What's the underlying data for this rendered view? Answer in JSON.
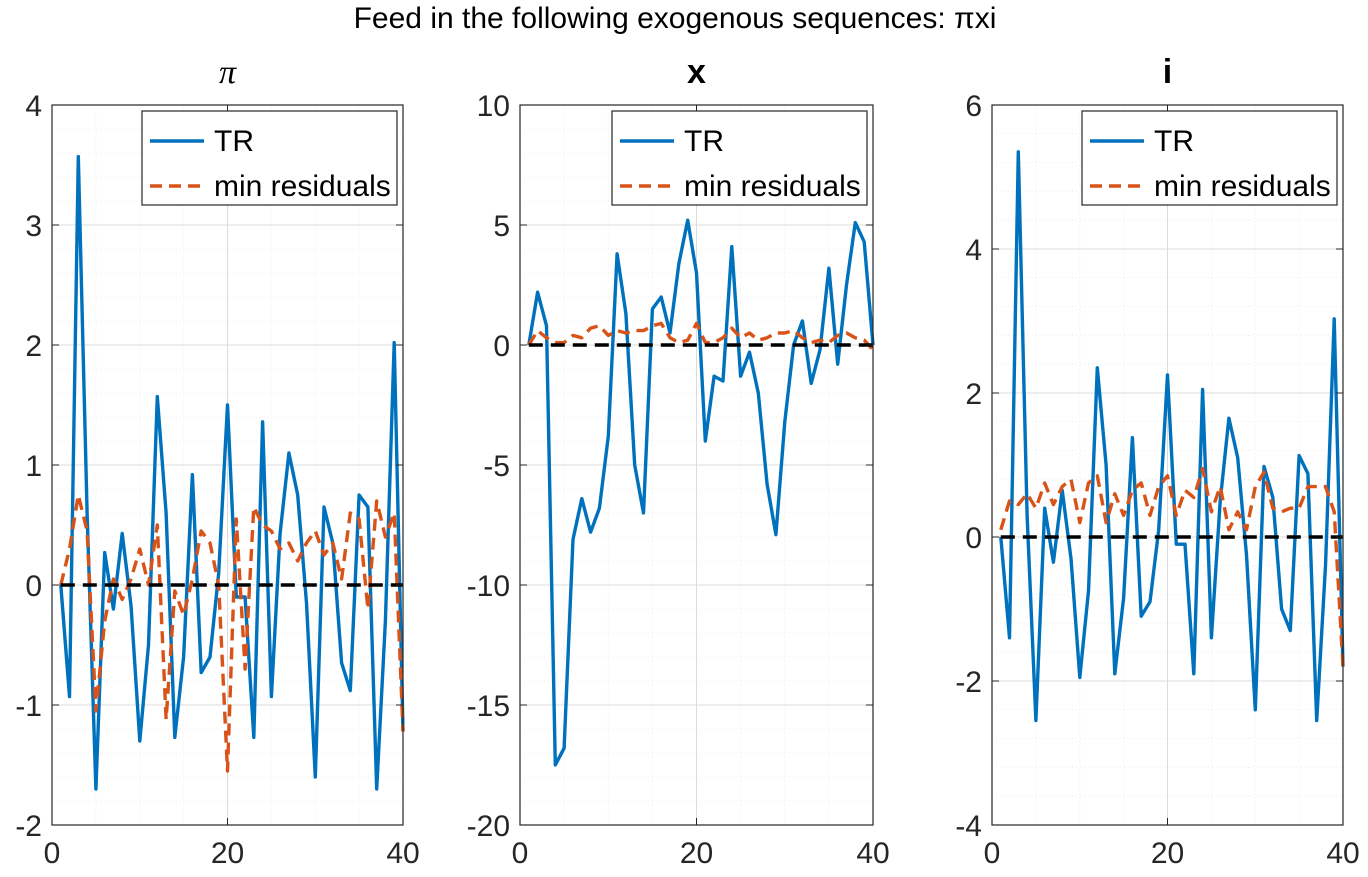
{
  "figure": {
    "suptitle": "Feed in the following exogenous sequences: πxi"
  },
  "colors": {
    "tr": "#0072BD",
    "min_residuals": "#D95319",
    "zero_line": "#000000",
    "grid_major": "#dcdcdc",
    "grid_minor": "#ececec"
  },
  "chart_data": [
    {
      "type": "line",
      "title": "π",
      "title_style": "italic",
      "xlim": [
        0,
        40
      ],
      "ylim": [
        -2,
        4
      ],
      "xticks": [
        0,
        20,
        40
      ],
      "yticks": [
        -2,
        -1,
        0,
        1,
        2,
        3,
        4
      ],
      "xticklabels": [
        "0",
        "20",
        "40"
      ],
      "yticklabels": [
        "-2",
        "-1",
        "0",
        "1",
        "2",
        "3",
        "4"
      ],
      "grid": true,
      "minor_grid": true,
      "legend": {
        "position": "top-right",
        "entries": [
          "TR",
          "min residuals"
        ]
      },
      "series": [
        {
          "name": "TR",
          "style": "solid",
          "x": [
            1,
            2,
            3,
            4,
            5,
            6,
            7,
            8,
            9,
            10,
            11,
            12,
            13,
            14,
            15,
            16,
            17,
            18,
            19,
            20,
            21,
            22,
            23,
            24,
            25,
            26,
            27,
            28,
            29,
            30,
            31,
            32,
            33,
            34,
            35,
            36,
            37,
            38,
            39,
            40
          ],
          "y": [
            0,
            -0.93,
            3.57,
            0.6,
            -1.7,
            0.27,
            -0.2,
            0.43,
            -0.17,
            -1.3,
            -0.5,
            1.57,
            0.6,
            -1.27,
            -0.6,
            0.92,
            -0.73,
            -0.6,
            0.1,
            1.5,
            -0.1,
            -0.1,
            -1.27,
            1.36,
            -0.93,
            0.43,
            1.1,
            0.75,
            -0.15,
            -1.6,
            0.65,
            0.35,
            -0.65,
            -0.88,
            0.75,
            0.65,
            -1.7,
            -0.3,
            2.02,
            -1.22
          ]
        },
        {
          "name": "min residuals",
          "style": "dashed",
          "x": [
            1,
            2,
            3,
            4,
            5,
            6,
            7,
            8,
            9,
            10,
            11,
            12,
            13,
            14,
            15,
            16,
            17,
            18,
            19,
            20,
            21,
            22,
            23,
            24,
            25,
            26,
            27,
            28,
            29,
            30,
            31,
            32,
            33,
            34,
            35,
            36,
            37,
            38,
            39,
            40
          ],
          "y": [
            0,
            0.3,
            0.75,
            0.45,
            -1.05,
            -0.3,
            0.05,
            -0.12,
            0.05,
            0.3,
            0.0,
            0.5,
            -1.12,
            -0.05,
            -0.25,
            0.05,
            0.45,
            0.35,
            0.0,
            -1.55,
            0.55,
            -0.7,
            0.65,
            0.5,
            0.45,
            0.3,
            0.35,
            0.2,
            0.35,
            0.45,
            0.25,
            0.35,
            0.05,
            0.6,
            0.55,
            -0.2,
            0.7,
            0.4,
            0.6,
            -1.22
          ]
        },
        {
          "name": "",
          "style": "dashed-black",
          "x": [
            1,
            40
          ],
          "y": [
            0,
            0
          ]
        }
      ]
    },
    {
      "type": "line",
      "title": "x",
      "title_style": "bold",
      "xlim": [
        0,
        40
      ],
      "ylim": [
        -20,
        10
      ],
      "xticks": [
        0,
        20,
        40
      ],
      "yticks": [
        -20,
        -15,
        -10,
        -5,
        0,
        5,
        10
      ],
      "xticklabels": [
        "0",
        "20",
        "40"
      ],
      "yticklabels": [
        "-20",
        "-15",
        "-10",
        "-5",
        "0",
        "5",
        "10"
      ],
      "grid": true,
      "minor_grid": true,
      "legend": {
        "position": "top-right",
        "entries": [
          "TR",
          "min residuals"
        ]
      },
      "series": [
        {
          "name": "TR",
          "style": "solid",
          "x": [
            1,
            2,
            3,
            4,
            5,
            6,
            7,
            8,
            9,
            10,
            11,
            12,
            13,
            14,
            15,
            16,
            17,
            18,
            19,
            20,
            21,
            22,
            23,
            24,
            25,
            26,
            27,
            28,
            29,
            30,
            31,
            32,
            33,
            34,
            35,
            36,
            37,
            38,
            39,
            40
          ],
          "y": [
            0,
            2.2,
            0.8,
            -17.5,
            -16.8,
            -8.1,
            -6.4,
            -7.8,
            -6.8,
            -3.8,
            3.8,
            1.3,
            -5.0,
            -7.0,
            1.5,
            2.0,
            0.5,
            3.4,
            5.2,
            3.0,
            -4.0,
            -1.3,
            -1.5,
            4.1,
            -1.3,
            -0.3,
            -2.0,
            -5.8,
            -7.9,
            -3.2,
            0.0,
            1.0,
            -1.6,
            -0.2,
            3.2,
            -0.8,
            2.5,
            5.1,
            4.3,
            0.0
          ]
        },
        {
          "name": "min residuals",
          "style": "dashed",
          "x": [
            1,
            2,
            3,
            4,
            5,
            6,
            7,
            8,
            9,
            10,
            11,
            12,
            13,
            14,
            15,
            16,
            17,
            18,
            19,
            20,
            21,
            22,
            23,
            24,
            25,
            26,
            27,
            28,
            29,
            30,
            31,
            32,
            33,
            34,
            35,
            36,
            37,
            38,
            39,
            40
          ],
          "y": [
            0,
            0.6,
            0.3,
            0.1,
            0.1,
            0.4,
            0.3,
            0.7,
            0.8,
            0.4,
            0.6,
            0.5,
            0.6,
            0.6,
            0.8,
            0.9,
            0.3,
            0.1,
            0.2,
            0.9,
            0.1,
            0.1,
            0.3,
            0.7,
            0.3,
            0.5,
            0.2,
            0.3,
            0.5,
            0.5,
            0.6,
            0.3,
            0.1,
            0.2,
            0.1,
            0.4,
            0.5,
            0.3,
            0.2,
            -0.2
          ]
        },
        {
          "name": "",
          "style": "dashed-black",
          "x": [
            1,
            40
          ],
          "y": [
            0,
            0
          ]
        }
      ]
    },
    {
      "type": "line",
      "title": "i",
      "title_style": "bold",
      "xlim": [
        0,
        40
      ],
      "ylim": [
        -4,
        6
      ],
      "xticks": [
        0,
        20,
        40
      ],
      "yticks": [
        -4,
        -2,
        0,
        2,
        4,
        6
      ],
      "xticklabels": [
        "0",
        "20",
        "40"
      ],
      "yticklabels": [
        "-4",
        "-2",
        "0",
        "2",
        "4",
        "6"
      ],
      "grid": true,
      "minor_grid": true,
      "legend": {
        "position": "top-right",
        "entries": [
          "TR",
          "min residuals"
        ]
      },
      "series": [
        {
          "name": "TR",
          "style": "solid",
          "x": [
            1,
            2,
            3,
            4,
            5,
            6,
            7,
            8,
            9,
            10,
            11,
            12,
            13,
            14,
            15,
            16,
            17,
            18,
            19,
            20,
            21,
            22,
            23,
            24,
            25,
            26,
            27,
            28,
            29,
            30,
            31,
            32,
            33,
            34,
            35,
            36,
            37,
            38,
            39,
            40
          ],
          "y": [
            0,
            -1.4,
            5.35,
            0.3,
            -2.55,
            0.4,
            -0.35,
            0.65,
            -0.3,
            -1.95,
            -0.75,
            2.35,
            1.0,
            -1.9,
            -0.85,
            1.38,
            -1.1,
            -0.9,
            0.1,
            2.25,
            -0.1,
            -0.1,
            -1.9,
            2.05,
            -1.4,
            0.5,
            1.65,
            1.1,
            -0.25,
            -2.4,
            0.98,
            0.55,
            -1.0,
            -1.3,
            1.13,
            0.88,
            -2.55,
            -0.4,
            3.03,
            -1.8
          ]
        },
        {
          "name": "min residuals",
          "style": "dashed",
          "x": [
            1,
            2,
            3,
            4,
            5,
            6,
            7,
            8,
            9,
            10,
            11,
            12,
            13,
            14,
            15,
            16,
            17,
            18,
            19,
            20,
            21,
            22,
            23,
            24,
            25,
            26,
            27,
            28,
            29,
            30,
            31,
            32,
            33,
            34,
            35,
            36,
            37,
            38,
            39,
            40
          ],
          "y": [
            0.1,
            0.5,
            0.45,
            0.6,
            0.4,
            0.75,
            0.45,
            0.7,
            0.8,
            0.2,
            0.75,
            0.85,
            0.2,
            0.6,
            0.3,
            0.65,
            0.75,
            0.3,
            0.7,
            0.85,
            0.3,
            0.65,
            0.55,
            0.95,
            0.35,
            0.7,
            0.1,
            0.35,
            0.1,
            0.7,
            0.9,
            0.4,
            0.35,
            0.4,
            0.4,
            0.7,
            0.7,
            0.7,
            0.35,
            -1.8
          ]
        },
        {
          "name": "",
          "style": "dashed-black",
          "x": [
            1,
            40
          ],
          "y": [
            0,
            0
          ]
        }
      ]
    }
  ]
}
